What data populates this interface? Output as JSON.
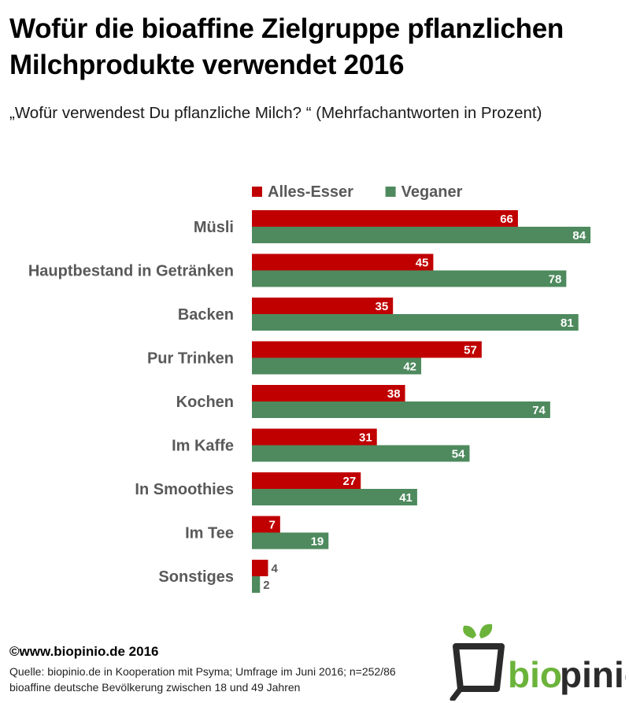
{
  "title": "Wofür die bioaffine Zielgruppe pflanzlichen Milchprodukte verwendet 2016",
  "subtitle": "„Wofür verwendest Du pflanzliche Milch? “ (Mehrfachantworten in Prozent)",
  "footer": {
    "copyright": "©www.biopinio.de 2016",
    "source_line1": "Quelle: biopinio.de in Kooperation mit Psyma; Umfrage im Juni 2016; n=252/86",
    "source_line2": "bioaffine deutsche Bevölkerung zwischen 18 und 49 Jahren"
  },
  "logo": {
    "text_bio": "bio",
    "text_pinio": "pinio",
    "icon": "plant-pot-logo-icon"
  },
  "colors": {
    "alles_esser": "#C00000",
    "veganer": "#4E8A5E",
    "logo_green": "#6BB33A",
    "logo_dark": "#2B2B2B",
    "label_text": "#595959"
  },
  "chart_data": {
    "type": "bar",
    "orientation": "horizontal",
    "categories": [
      "Müsli",
      "Hauptbestand in Getränken",
      "Backen",
      "Pur Trinken",
      "Kochen",
      "Im Kaffe",
      "In Smoothies",
      "Im Tee",
      "Sonstiges"
    ],
    "series": [
      {
        "name": "Alles-Esser",
        "values": [
          66,
          45,
          35,
          57,
          38,
          31,
          27,
          7,
          4
        ]
      },
      {
        "name": "Veganer",
        "values": [
          84,
          78,
          81,
          42,
          74,
          54,
          41,
          19,
          2
        ]
      }
    ],
    "xlim": [
      0,
      100
    ],
    "legend": "top",
    "grid": false,
    "title": "",
    "xlabel": "",
    "ylabel": ""
  }
}
